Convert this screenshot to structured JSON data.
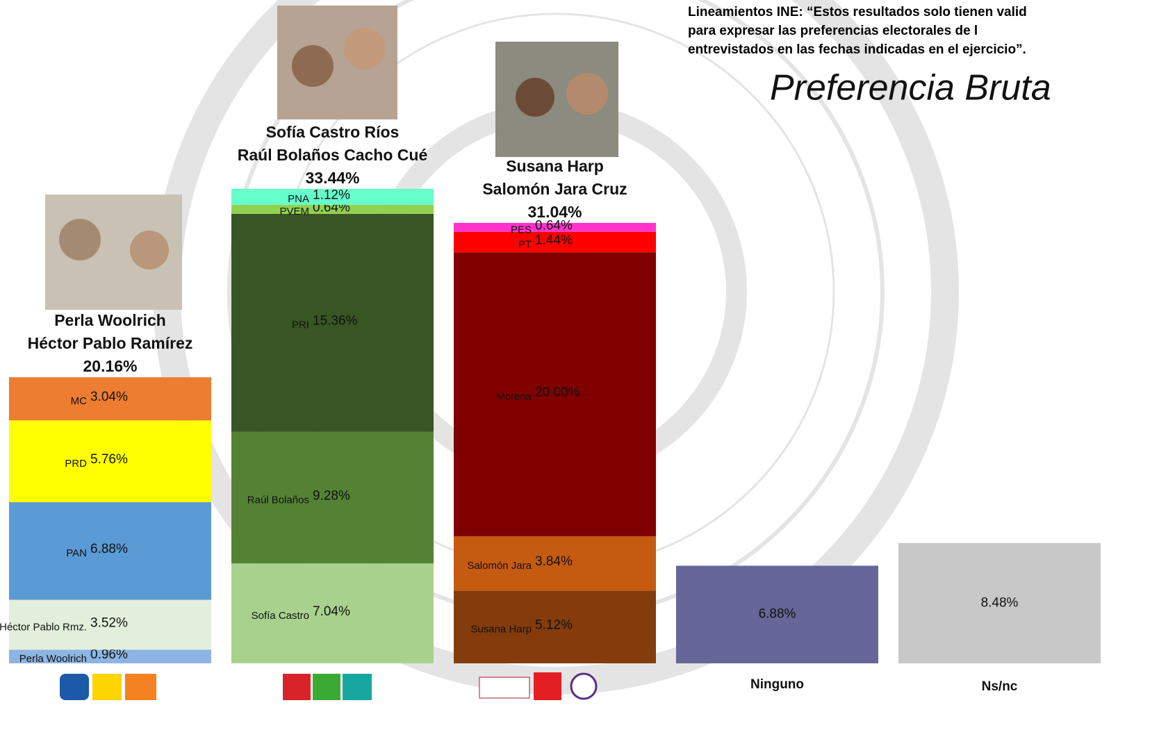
{
  "chart_data": {
    "type": "stacked-bar",
    "title": "Preferencia Bruta",
    "note": [
      "Lineamientos INE: “Estos resultados solo tienen valid",
      "para  expresar  las  preferencias  electorales  de  l",
      "entrevistados en las fechas indicadas en el ejercicio”."
    ],
    "columns": [
      {
        "candidates": [
          "Perla Woolrich",
          "Héctor Pablo Ramírez"
        ],
        "total": 20.16,
        "total_label": "20.16%",
        "segments": [
          {
            "name": "Perla Woolrich",
            "value": 0.96,
            "value_label": "0.96%",
            "color": "#8db4e2"
          },
          {
            "name": "Héctor Pablo Rmz.",
            "value": 3.52,
            "value_label": "3.52%",
            "color": "#e2efda"
          },
          {
            "name": "PAN",
            "value": 6.88,
            "value_label": "6.88%",
            "color": "#5b9bd5"
          },
          {
            "name": "PRD",
            "value": 5.76,
            "value_label": "5.76%",
            "color": "#ffff00"
          },
          {
            "name": "MC",
            "value": 3.04,
            "value_label": "3.04%",
            "color": "#ed7d31"
          }
        ]
      },
      {
        "candidates": [
          "Sofía Castro Ríos",
          "Raúl Bolaños Cacho Cué"
        ],
        "total": 33.44,
        "total_label": "33.44%",
        "segments": [
          {
            "name": "Sofía Castro",
            "value": 7.04,
            "value_label": "7.04%",
            "color": "#a9d18e"
          },
          {
            "name": "Raúl Bolaños",
            "value": 9.28,
            "value_label": "9.28%",
            "color": "#548235"
          },
          {
            "name": "PRI",
            "value": 15.36,
            "value_label": "15.36%",
            "color": "#375623"
          },
          {
            "name": "PVEM",
            "value": 0.64,
            "value_label": "0.64%",
            "color": "#92d050"
          },
          {
            "name": "PNA",
            "value": 1.12,
            "value_label": "1.12%",
            "color": "#66ffcc"
          }
        ]
      },
      {
        "candidates": [
          "Susana Harp",
          "Salomón Jara Cruz"
        ],
        "total": 31.04,
        "total_label": "31.04%",
        "segments": [
          {
            "name": "Susana Harp",
            "value": 5.12,
            "value_label": "5.12%",
            "color": "#843c0c"
          },
          {
            "name": "Salomón Jara",
            "value": 3.84,
            "value_label": "3.84%",
            "color": "#c55a11"
          },
          {
            "name": "Morena",
            "value": 20.0,
            "value_label": "20.00%",
            "color": "#800000"
          },
          {
            "name": "PT",
            "value": 1.44,
            "value_label": "1.44%",
            "color": "#ff0000"
          },
          {
            "name": "PES",
            "value": 0.64,
            "value_label": "0.64%",
            "color": "#ff33cc"
          }
        ]
      }
    ],
    "others": [
      {
        "category": "Ninguno",
        "value": 6.88,
        "value_label": "6.88%",
        "color": "#666699"
      },
      {
        "category": "Ns/nc",
        "value": 8.48,
        "value_label": "8.48%",
        "color": "#c8c8c8"
      }
    ]
  }
}
